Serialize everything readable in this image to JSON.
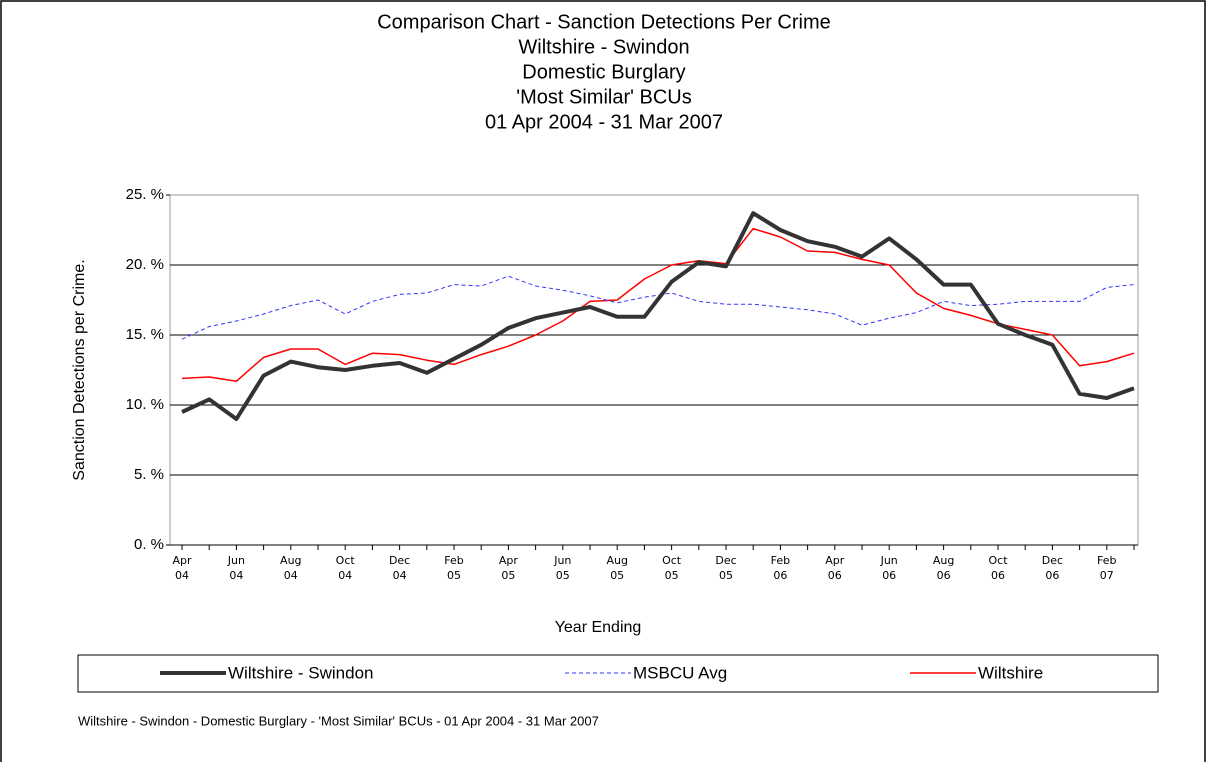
{
  "chart_data": {
    "type": "line",
    "title": [
      "Comparison Chart - Sanction Detections Per Crime",
      "Wiltshire - Swindon",
      "Domestic Burglary",
      "'Most Similar' BCUs",
      "01 Apr 2004 - 31 Mar 2007"
    ],
    "xlabel": "Year Ending",
    "ylabel": "Sanction Detections per Crime.",
    "footnote": "Wiltshire - Swindon - Domestic Burglary - 'Most Similar' BCUs - 01 Apr 2004 - 31 Mar 2007",
    "categories": [
      "Apr 04",
      null,
      "Jun 04",
      null,
      "Aug 04",
      null,
      "Oct 04",
      null,
      "Dec 04",
      null,
      "Feb 05",
      null,
      "Apr 05",
      null,
      "Jun 05",
      null,
      "Aug 05",
      null,
      "Oct 05",
      null,
      "Dec 05",
      null,
      "Feb 06",
      null,
      "Apr 06",
      null,
      "Jun 06",
      null,
      "Aug 06",
      null,
      "Oct 06",
      null,
      "Dec 06",
      null,
      "Feb 07",
      null
    ],
    "ylim": [
      0,
      25
    ],
    "yticks": [
      {
        "value": 0,
        "label": "0. %"
      },
      {
        "value": 5,
        "label": "5. %"
      },
      {
        "value": 10,
        "label": "10. %"
      },
      {
        "value": 15,
        "label": "15. %"
      },
      {
        "value": 20,
        "label": "20. %"
      },
      {
        "value": 25,
        "label": "25. %"
      }
    ],
    "grid": true,
    "legend": "bottom",
    "series": [
      {
        "name": "Wiltshire - Swindon",
        "color": "#333333",
        "width": 4,
        "dash": "none",
        "values": [
          9.5,
          10.4,
          9.0,
          12.1,
          13.1,
          12.7,
          12.5,
          12.8,
          13.0,
          12.3,
          13.3,
          14.3,
          15.5,
          16.2,
          16.6,
          17.0,
          16.3,
          16.3,
          18.8,
          20.2,
          19.9,
          23.7,
          22.5,
          21.7,
          21.3,
          20.6,
          21.9,
          20.4,
          18.6,
          18.6,
          15.8,
          15.0,
          14.3,
          10.8,
          10.5,
          11.2
        ]
      },
      {
        "name": "MSBCU Avg",
        "color": "#3333ff",
        "width": 1,
        "dash": "4 3",
        "values": [
          14.7,
          15.6,
          16.0,
          16.5,
          17.1,
          17.5,
          16.5,
          17.4,
          17.9,
          18.0,
          18.6,
          18.5,
          19.2,
          18.5,
          18.2,
          17.8,
          17.3,
          17.7,
          18.0,
          17.4,
          17.2,
          17.2,
          17.0,
          16.8,
          16.5,
          15.7,
          16.2,
          16.6,
          17.4,
          17.1,
          17.2,
          17.4,
          17.4,
          17.4,
          18.4,
          18.6
        ]
      },
      {
        "name": "Wiltshire",
        "color": "#ff0000",
        "width": 1.5,
        "dash": "none",
        "values": [
          11.9,
          12.0,
          11.7,
          13.4,
          14.0,
          14.0,
          12.9,
          13.7,
          13.6,
          13.2,
          12.9,
          13.6,
          14.2,
          15.0,
          16.0,
          17.4,
          17.5,
          19.0,
          20.0,
          20.3,
          20.1,
          22.6,
          22.0,
          21.0,
          20.9,
          20.4,
          20.0,
          18.0,
          16.9,
          16.4,
          15.8,
          15.4,
          15.0,
          12.8,
          13.1,
          13.7
        ]
      }
    ]
  }
}
